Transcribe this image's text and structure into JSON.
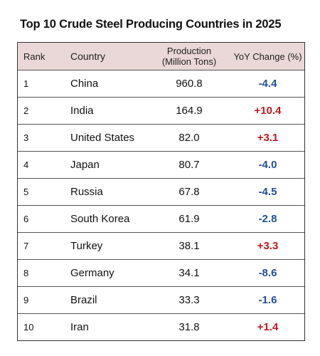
{
  "title": "Top 10 Crude Steel Producing Countries in 2025",
  "colors": {
    "header_bg": "#ead7d7",
    "positive": "#c0171e",
    "negative": "#1f4e96",
    "border": "#333333"
  },
  "chart_data": {
    "type": "table",
    "title": "Top 10 Crude Steel Producing Countries in 2025",
    "columns": [
      "Rank",
      "Country",
      "Production",
      "(Million Tons)",
      "YoY Change (%)"
    ],
    "rows": [
      {
        "rank": "1",
        "country": "China",
        "production": "960.8",
        "yoy": "-4.4"
      },
      {
        "rank": "2",
        "country": "India",
        "production": "164.9",
        "yoy": "+10.4"
      },
      {
        "rank": "3",
        "country": "United States",
        "production": "82.0",
        "yoy": "+3.1"
      },
      {
        "rank": "4",
        "country": "Japan",
        "production": "80.7",
        "yoy": "-4.0"
      },
      {
        "rank": "5",
        "country": "Russia",
        "production": "67.8",
        "yoy": "-4.5"
      },
      {
        "rank": "6",
        "country": "South Korea",
        "production": "61.9",
        "yoy": "-2.8"
      },
      {
        "rank": "7",
        "country": "Turkey",
        "production": "38.1",
        "yoy": "+3.3"
      },
      {
        "rank": "8",
        "country": "Germany",
        "production": "34.1",
        "yoy": "-8.6"
      },
      {
        "rank": "9",
        "country": "Brazil",
        "production": "33.3",
        "yoy": "-1.6"
      },
      {
        "rank": "10",
        "country": "Iran",
        "production": "31.8",
        "yoy": "+1.4"
      }
    ]
  }
}
